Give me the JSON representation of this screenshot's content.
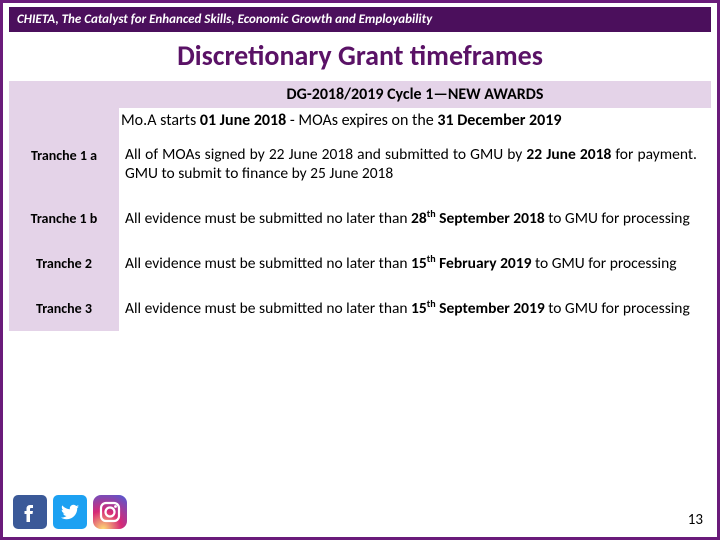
{
  "banner": "CHIETA, The Catalyst for Enhanced Skills, Economic Growth and Employability",
  "title": "Discretionary Grant timeframes",
  "header": "DG-2018/2019 Cycle 1—NEW AWARDS",
  "subheader_html": "Mo.A starts <b>01 June 2018</b> - MOAs expires on the <b>31 December 2019</b>",
  "rows": [
    {
      "label": "Tranche 1 a",
      "body_html": "All of MOAs signed by 22 June 2018 and submitted to GMU by <b>22 June 2018</b> for payment. GMU to submit to finance by 25 June 2018"
    },
    {
      "label": "Tranche 1 b",
      "body_html": "All evidence must be submitted no later than <b>28<sup>th</sup> September 2018</b> to GMU for processing"
    },
    {
      "label": "Tranche 2",
      "body_html": "All evidence must be submitted no later than <b>15<sup>th</sup> February 2019</b> to GMU for processing"
    },
    {
      "label": "Tranche 3",
      "body_html": "All evidence must be submitted no later than <b>15<sup>th</sup> September 2019</b> to GMU for processing"
    }
  ],
  "page_number": "13",
  "colors": {
    "border": "#6a1b7a",
    "banner_bg": "#4b0f5c",
    "title_color": "#5a1266",
    "shade": "#e4d3e8",
    "fb": "#3b5998",
    "tw": "#1da1f2",
    "ig1": "#feda75",
    "ig2": "#d62976",
    "ig3": "#4f5bd5"
  }
}
